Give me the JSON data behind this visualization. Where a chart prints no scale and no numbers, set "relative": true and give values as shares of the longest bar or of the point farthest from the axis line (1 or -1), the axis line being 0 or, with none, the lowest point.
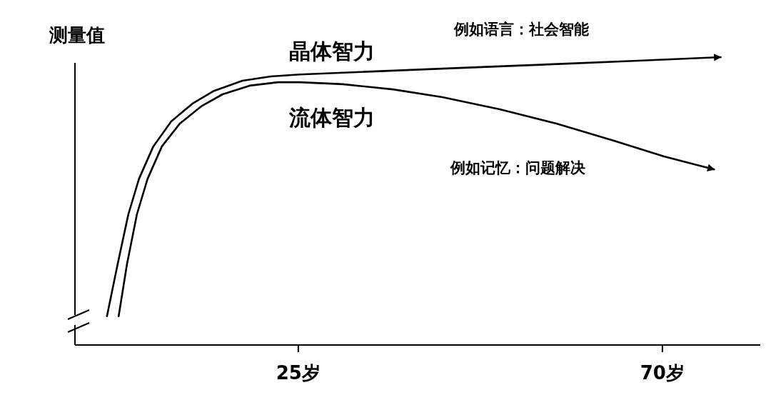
{
  "chart_data": {
    "type": "line",
    "relative": true,
    "ylabel": "测量值",
    "xlim": [
      -2.6,
      82.1
    ],
    "xticks": [
      {
        "value": 25,
        "label": "25岁"
      },
      {
        "value": 70,
        "label": "70岁"
      }
    ],
    "annotations": [
      "例如语言：社会智能",
      "例如记忆：问题解决"
    ],
    "series": [
      {
        "name": "晶体智力",
        "color": "#000000",
        "x": [
          1.35,
          2.67,
          4.0,
          5.32,
          7.09,
          9.29,
          11.94,
          14.59,
          18.1,
          21.6,
          25.2,
          32.2,
          41.1,
          49.9,
          58.7,
          67.5,
          77.2
        ],
        "values": [
          0.1,
          0.28,
          0.454,
          0.578,
          0.69,
          0.777,
          0.839,
          0.883,
          0.918,
          0.933,
          0.94,
          0.948,
          0.958,
          0.968,
          0.978,
          0.988,
          1.0
        ]
      },
      {
        "name": "流体智力",
        "color": "#000000",
        "x": [
          2.8,
          3.82,
          5.06,
          6.38,
          8.15,
          10.35,
          13.0,
          15.65,
          19.0,
          22.5,
          25.2,
          30.5,
          36.7,
          42.8,
          49.9,
          56.9,
          64.0,
          70.2,
          76.4
        ],
        "values": [
          0.1,
          0.28,
          0.454,
          0.578,
          0.69,
          0.769,
          0.829,
          0.871,
          0.901,
          0.913,
          0.913,
          0.906,
          0.888,
          0.861,
          0.819,
          0.769,
          0.71,
          0.655,
          0.61
        ]
      }
    ]
  }
}
